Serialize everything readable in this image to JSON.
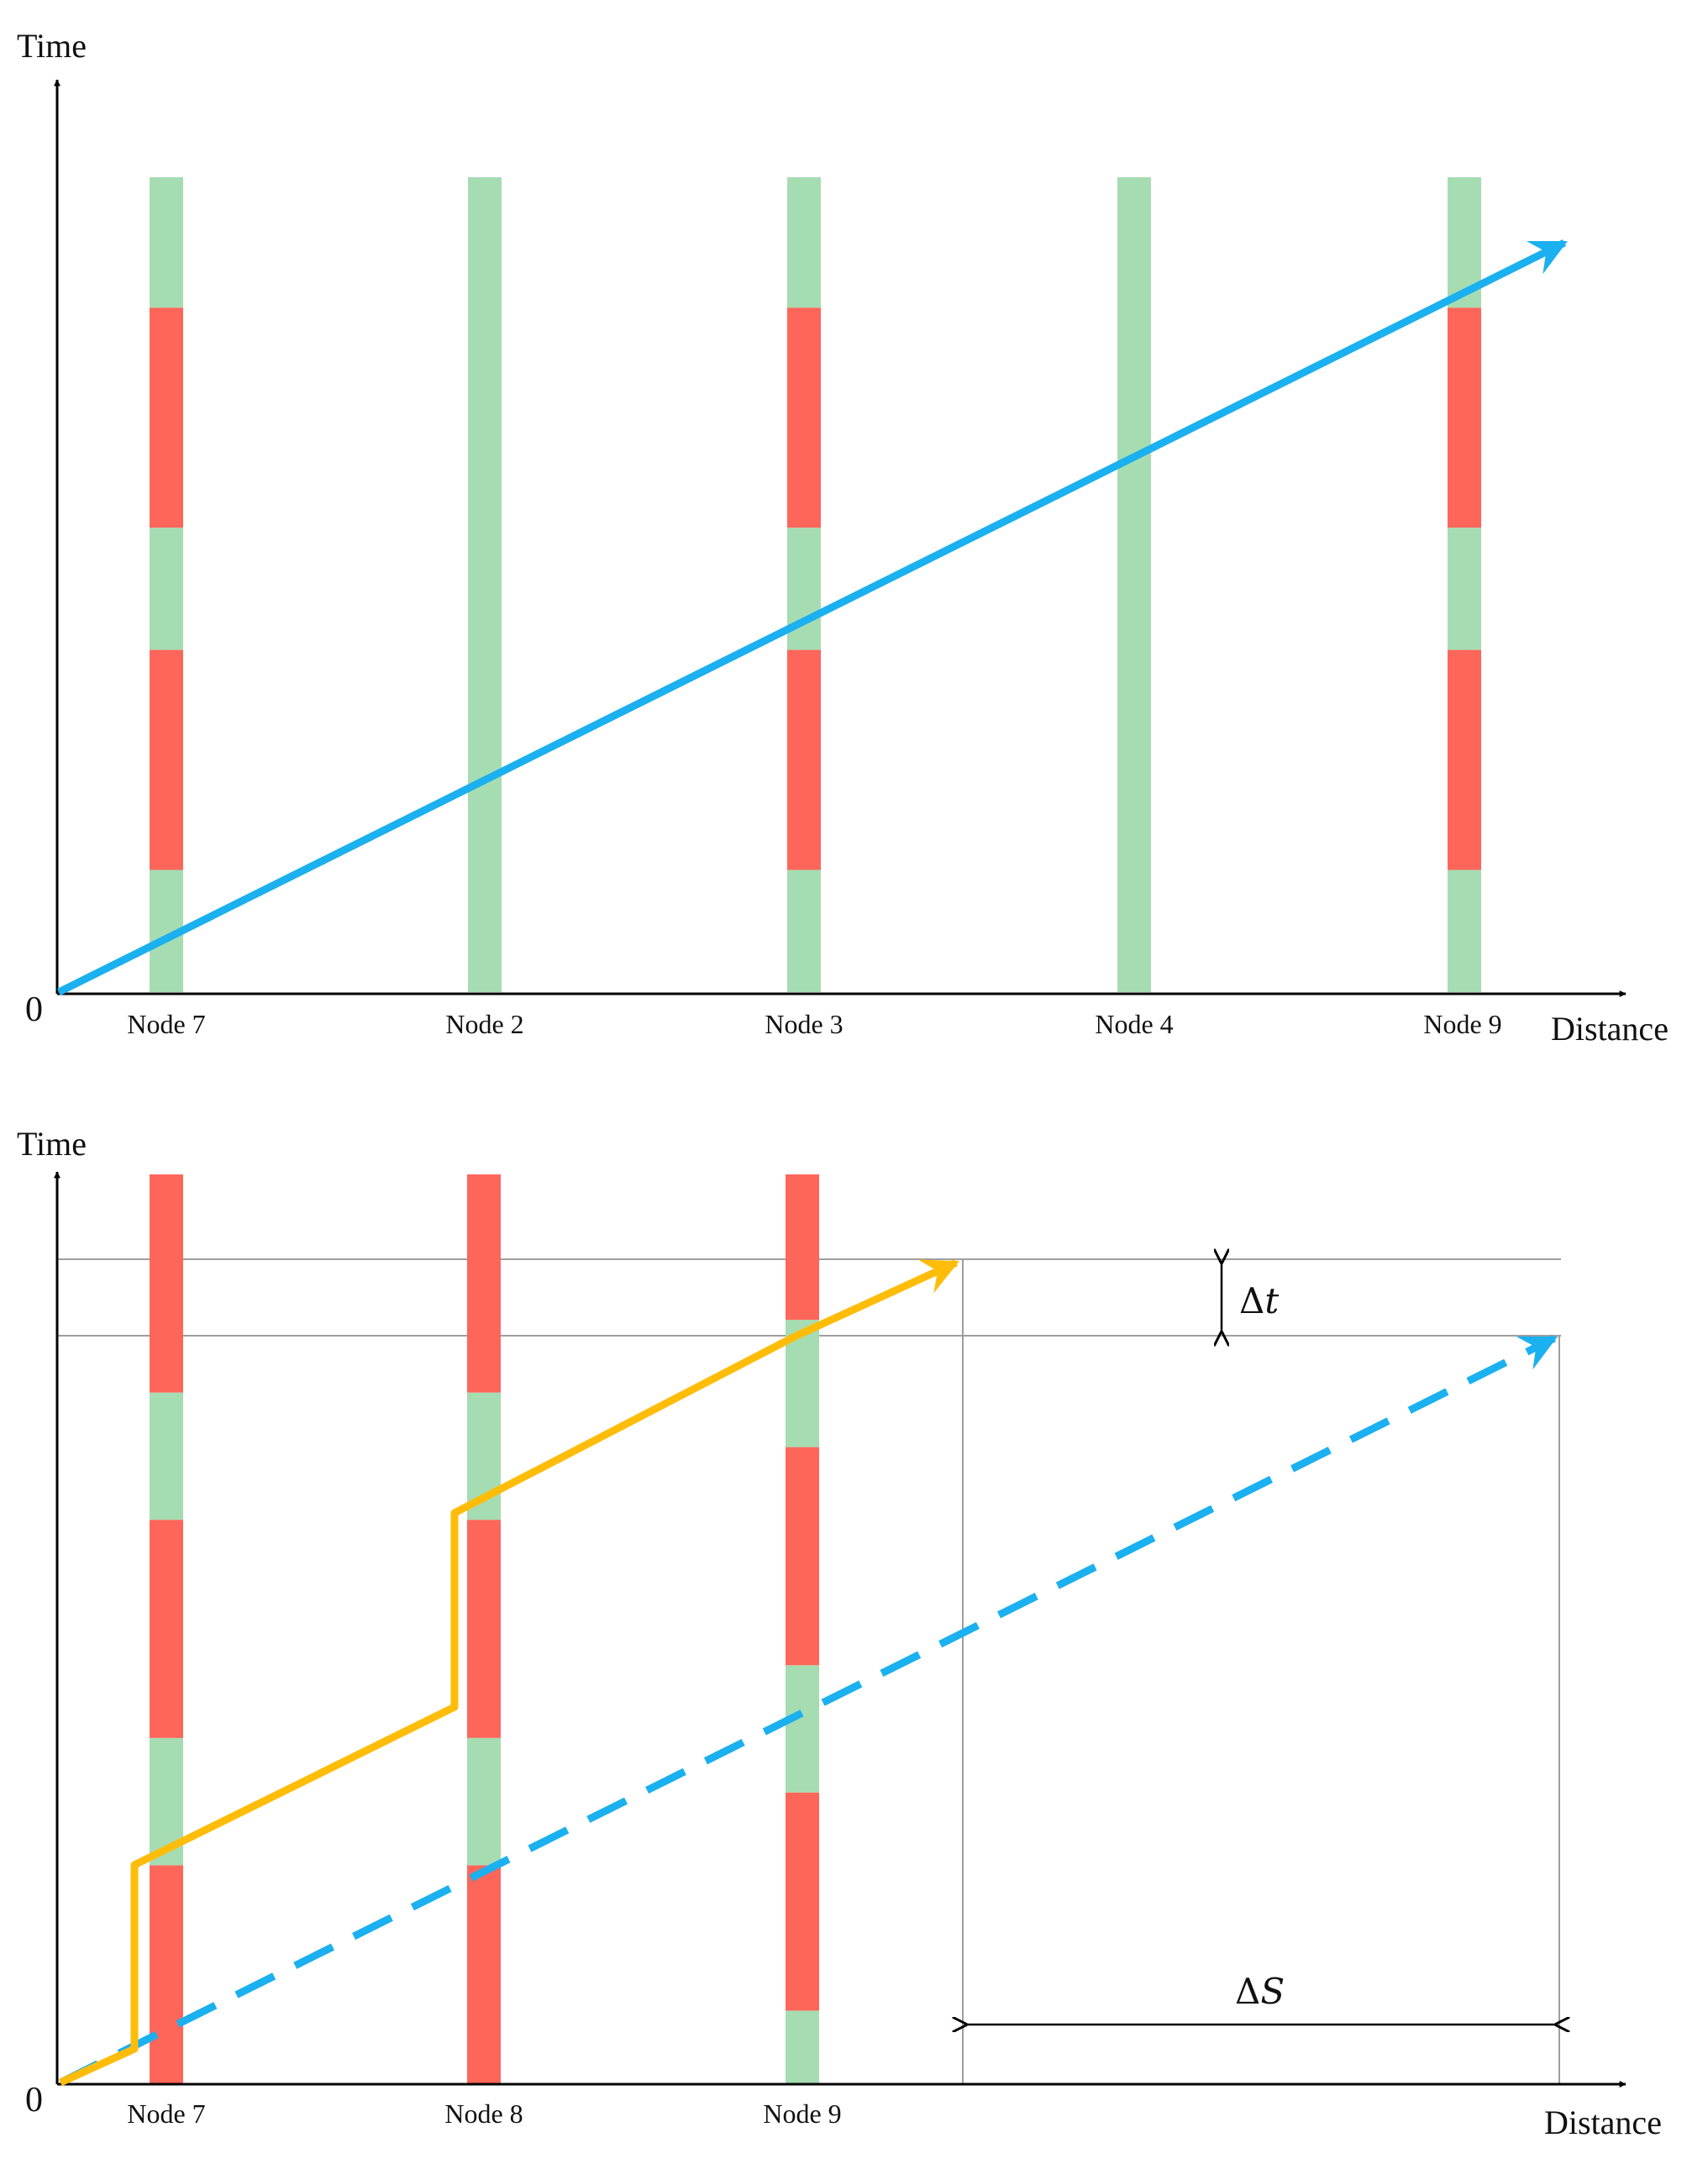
{
  "colors": {
    "green": "#a6dcb2",
    "red": "#fe665a",
    "blue": "#1bb0ef",
    "orange": "#ffbd09",
    "axis": "#000000",
    "guide": "#9e9e9e"
  },
  "top_panel": {
    "y_axis_label": "Time",
    "x_axis_label": "Distance",
    "origin_label": "0",
    "nodes": [
      {
        "label": "Node 7",
        "phases": [
          [
            "green",
            0,
            0.15
          ],
          [
            "red",
            0.15,
            0.42
          ],
          [
            "green",
            0.42,
            0.57
          ],
          [
            "red",
            0.57,
            0.84
          ],
          [
            "green",
            0.84,
            1.0
          ]
        ]
      },
      {
        "label": "Node 2",
        "phases": [
          [
            "green",
            0,
            1.0
          ]
        ]
      },
      {
        "label": "Node 3",
        "phases": [
          [
            "green",
            0,
            0.15
          ],
          [
            "red",
            0.15,
            0.42
          ],
          [
            "green",
            0.42,
            0.57
          ],
          [
            "red",
            0.57,
            0.84
          ],
          [
            "green",
            0.84,
            1.0
          ]
        ]
      },
      {
        "label": "Node 4",
        "phases": [
          [
            "green",
            0,
            1.0
          ]
        ]
      },
      {
        "label": "Node 9",
        "phases": [
          [
            "green",
            0,
            0.15
          ],
          [
            "red",
            0.15,
            0.42
          ],
          [
            "green",
            0.42,
            0.57
          ],
          [
            "red",
            0.57,
            0.84
          ],
          [
            "green",
            0.84,
            1.0
          ]
        ]
      }
    ],
    "trajectory": {
      "style": "solid",
      "color": "blue"
    }
  },
  "bottom_panel": {
    "y_axis_label": "Time",
    "x_axis_label": "Distance",
    "origin_label": "0",
    "nodes": [
      {
        "label": "Node 7",
        "phases": [
          [
            "red",
            0,
            0.24
          ],
          [
            "green",
            0.24,
            0.38
          ],
          [
            "red",
            0.38,
            0.62
          ],
          [
            "green",
            0.62,
            0.76
          ],
          [
            "red",
            0.76,
            1.0
          ]
        ]
      },
      {
        "label": "Node 8",
        "phases": [
          [
            "red",
            0,
            0.24
          ],
          [
            "green",
            0.24,
            0.38
          ],
          [
            "red",
            0.38,
            0.62
          ],
          [
            "green",
            0.62,
            0.76
          ],
          [
            "red",
            0.76,
            1.0
          ]
        ]
      },
      {
        "label": "Node 9",
        "phases": [
          [
            "green",
            0,
            0.08
          ],
          [
            "red",
            0.08,
            0.32
          ],
          [
            "green",
            0.32,
            0.46
          ],
          [
            "red",
            0.46,
            0.7
          ],
          [
            "green",
            0.7,
            0.84
          ],
          [
            "red",
            0.84,
            1.0
          ]
        ]
      }
    ],
    "trajectories": [
      {
        "style": "dashed",
        "color": "blue"
      },
      {
        "style": "stepped",
        "color": "orange"
      }
    ],
    "delta_t_label": "Δ𝑡",
    "delta_s_label": "Δ𝑆"
  }
}
